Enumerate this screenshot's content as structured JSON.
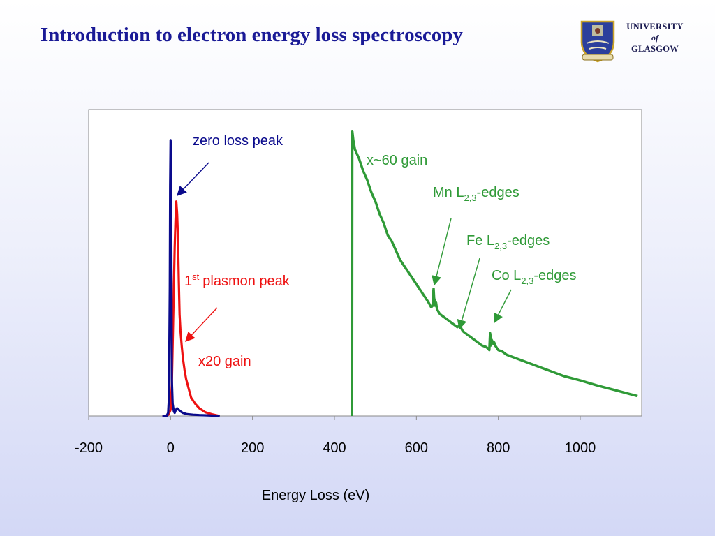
{
  "slide": {
    "title": "Introduction to electron energy loss spectroscopy"
  },
  "logo": {
    "line1": "UNIVERSITY",
    "line2": "of",
    "line3": "GLASGOW"
  },
  "colors": {
    "title": "#1a1a96",
    "zero_loss": "#0a0a8c",
    "plasmon": "#ee1111",
    "core_loss": "#2f9a37",
    "plot_background": "#ffffff"
  },
  "chart_data": {
    "type": "line",
    "title": "",
    "xlabel": "Energy Loss (eV)",
    "ylabel": "",
    "xlim": [
      -200,
      1150
    ],
    "x_ticks": [
      -200,
      0,
      200,
      400,
      600,
      800,
      1000
    ],
    "x_tick_labels": [
      "-200",
      "0",
      "200",
      "400",
      "600",
      "800",
      "1000"
    ],
    "ylim": [
      0,
      1.0
    ],
    "y_axis_visible": false,
    "grid": false,
    "legend": "none",
    "series": [
      {
        "key": "zero_loss",
        "x": [
          -20,
          -10,
          -6,
          -4,
          -2,
          -1,
          0,
          1,
          2,
          3,
          5,
          8,
          10,
          13,
          16,
          20,
          24,
          30,
          40,
          55,
          70,
          90,
          110,
          120
        ],
        "y": [
          0,
          0,
          0.01,
          0.06,
          0.42,
          0.75,
          0.9,
          0.87,
          0.5,
          0.12,
          0.04,
          0.015,
          0.01,
          0.02,
          0.025,
          0.02,
          0.015,
          0.01,
          0.006,
          0.004,
          0.003,
          0.002,
          0.001,
          0
        ]
      },
      {
        "key": "plasmon",
        "x": [
          -20,
          -10,
          -5,
          0,
          3,
          6,
          10,
          12,
          14,
          16,
          18,
          20,
          22,
          24,
          27,
          30,
          34,
          38,
          44,
          50,
          60,
          70,
          85,
          100,
          120
        ],
        "y": [
          0,
          0,
          0.005,
          0.02,
          0.1,
          0.3,
          0.55,
          0.64,
          0.7,
          0.66,
          0.58,
          0.44,
          0.33,
          0.28,
          0.23,
          0.19,
          0.15,
          0.12,
          0.09,
          0.06,
          0.04,
          0.025,
          0.012,
          0.006,
          0
        ]
      },
      {
        "key": "core_loss",
        "x": [
          443,
          443.5,
          446,
          450,
          460,
          470,
          480,
          490,
          500,
          510,
          520,
          530,
          540,
          550,
          560,
          570,
          580,
          590,
          600,
          610,
          620,
          630,
          636,
          640,
          641,
          642,
          643,
          644,
          645,
          646,
          648,
          650,
          652,
          654,
          656,
          660,
          670,
          680,
          690,
          700,
          705,
          708,
          710,
          712,
          715,
          720,
          730,
          740,
          750,
          760,
          770,
          775,
          778,
          779,
          780,
          781,
          782,
          783,
          785,
          788,
          790,
          792,
          795,
          800,
          810,
          820,
          840,
          860,
          880,
          900,
          920,
          940,
          960,
          980,
          1000,
          1020,
          1040,
          1060,
          1080,
          1100,
          1120,
          1140
        ],
        "y": [
          0,
          0.93,
          0.9,
          0.87,
          0.84,
          0.8,
          0.77,
          0.73,
          0.7,
          0.66,
          0.63,
          0.59,
          0.57,
          0.54,
          0.51,
          0.49,
          0.47,
          0.45,
          0.43,
          0.41,
          0.39,
          0.37,
          0.355,
          0.36,
          0.4,
          0.415,
          0.39,
          0.37,
          0.38,
          0.36,
          0.37,
          0.35,
          0.345,
          0.34,
          0.335,
          0.33,
          0.32,
          0.31,
          0.3,
          0.29,
          0.295,
          0.29,
          0.285,
          0.28,
          0.275,
          0.27,
          0.26,
          0.25,
          0.24,
          0.23,
          0.225,
          0.22,
          0.215,
          0.24,
          0.27,
          0.26,
          0.23,
          0.25,
          0.245,
          0.235,
          0.24,
          0.23,
          0.225,
          0.215,
          0.21,
          0.2,
          0.19,
          0.18,
          0.17,
          0.16,
          0.15,
          0.14,
          0.13,
          0.123,
          0.116,
          0.108,
          0.1,
          0.093,
          0.086,
          0.079,
          0.072,
          0.065
        ]
      }
    ],
    "annotations": {
      "zero_loss": {
        "text": "zero loss peak"
      },
      "plasmon": {
        "text": "plasmon peak",
        "prefix": "1",
        "sup": "st"
      },
      "x20": {
        "text": "x20 gain"
      },
      "x60": {
        "text": "x~60 gain"
      },
      "mn": {
        "text": "Mn L",
        "sub": "2,3",
        "suffix": "-edges"
      },
      "fe": {
        "text": "Fe L",
        "sub": "2,3",
        "suffix": "-edges"
      },
      "co": {
        "text": "Co L",
        "sub": "2,3",
        "suffix": "-edges"
      }
    }
  }
}
